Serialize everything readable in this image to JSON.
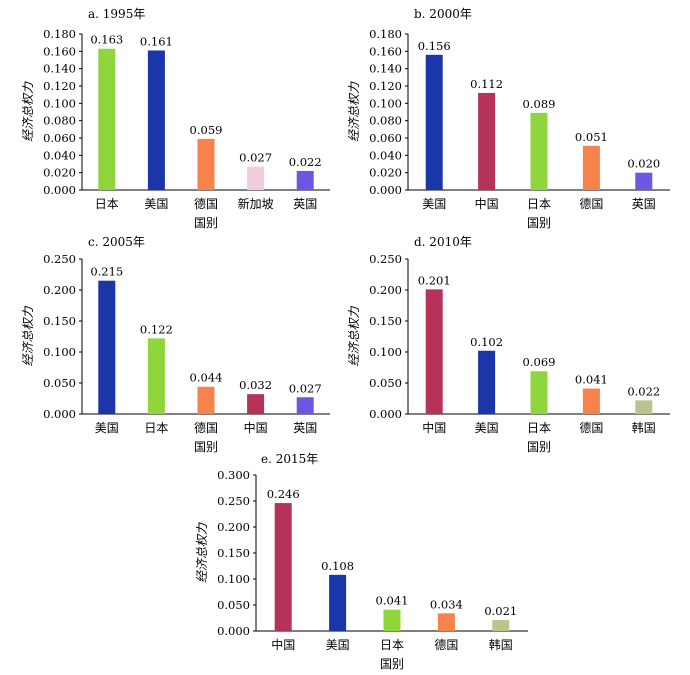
{
  "chart_data": [
    {
      "type": "bar",
      "title": "a. 1995年",
      "xlabel": "国别",
      "ylabel": "经济总权力",
      "ylim": [
        0,
        0.18
      ],
      "yticks": [
        "0.000",
        "0.020",
        "0.040",
        "0.060",
        "0.080",
        "0.100",
        "0.120",
        "0.140",
        "0.160",
        "0.180"
      ],
      "categories": [
        "日本",
        "美国",
        "德国",
        "新加坡",
        "英国"
      ],
      "values": [
        0.163,
        0.161,
        0.059,
        0.027,
        0.022
      ],
      "value_labels": [
        "0.163",
        "0.161",
        "0.059",
        "0.027",
        "0.022"
      ],
      "colors": [
        "#8fd63c",
        "#1a36a8",
        "#f5834b",
        "#f2cde0",
        "#6b57e0"
      ]
    },
    {
      "type": "bar",
      "title": "b. 2000年",
      "xlabel": "国别",
      "ylabel": "经济总权力",
      "ylim": [
        0,
        0.18
      ],
      "yticks": [
        "0.000",
        "0.020",
        "0.040",
        "0.060",
        "0.080",
        "0.100",
        "0.120",
        "0.140",
        "0.160",
        "0.180"
      ],
      "categories": [
        "美国",
        "中国",
        "日本",
        "德国",
        "英国"
      ],
      "values": [
        0.156,
        0.112,
        0.089,
        0.051,
        0.02
      ],
      "value_labels": [
        "0.156",
        "0.112",
        "0.089",
        "0.051",
        "0.020"
      ],
      "colors": [
        "#1a36a8",
        "#b53259",
        "#8fd63c",
        "#f5834b",
        "#6b57e0"
      ]
    },
    {
      "type": "bar",
      "title": "c. 2005年",
      "xlabel": "国别",
      "ylabel": "经济总权力",
      "ylim": [
        0,
        0.25
      ],
      "yticks": [
        "0.000",
        "0.050",
        "0.100",
        "0.150",
        "0.200",
        "0.250"
      ],
      "categories": [
        "美国",
        "日本",
        "德国",
        "中国",
        "英国"
      ],
      "values": [
        0.215,
        0.122,
        0.044,
        0.032,
        0.027
      ],
      "value_labels": [
        "0.215",
        "0.122",
        "0.044",
        "0.032",
        "0.027"
      ],
      "colors": [
        "#1a36a8",
        "#8fd63c",
        "#f5834b",
        "#b53259",
        "#6b57e0"
      ]
    },
    {
      "type": "bar",
      "title": "d. 2010年",
      "xlabel": "国别",
      "ylabel": "经济总权力",
      "ylim": [
        0,
        0.25
      ],
      "yticks": [
        "0.000",
        "0.050",
        "0.100",
        "0.150",
        "0.200",
        "0.250"
      ],
      "categories": [
        "中国",
        "美国",
        "日本",
        "德国",
        "韩国"
      ],
      "values": [
        0.201,
        0.102,
        0.069,
        0.041,
        0.022
      ],
      "value_labels": [
        "0.201",
        "0.102",
        "0.069",
        "0.041",
        "0.022"
      ],
      "colors": [
        "#b53259",
        "#1a36a8",
        "#8fd63c",
        "#f5834b",
        "#b9c58c"
      ]
    },
    {
      "type": "bar",
      "title": "e. 2015年",
      "xlabel": "国别",
      "ylabel": "经济总权力",
      "ylim": [
        0,
        0.3
      ],
      "yticks": [
        "0.000",
        "0.050",
        "0.100",
        "0.150",
        "0.200",
        "0.250",
        "0.300"
      ],
      "categories": [
        "中国",
        "美国",
        "日本",
        "德国",
        "韩国"
      ],
      "values": [
        0.246,
        0.108,
        0.041,
        0.034,
        0.021
      ],
      "value_labels": [
        "0.246",
        "0.108",
        "0.041",
        "0.034",
        "0.021"
      ],
      "colors": [
        "#b53259",
        "#1a36a8",
        "#8fd63c",
        "#f5834b",
        "#b9c58c"
      ]
    }
  ]
}
